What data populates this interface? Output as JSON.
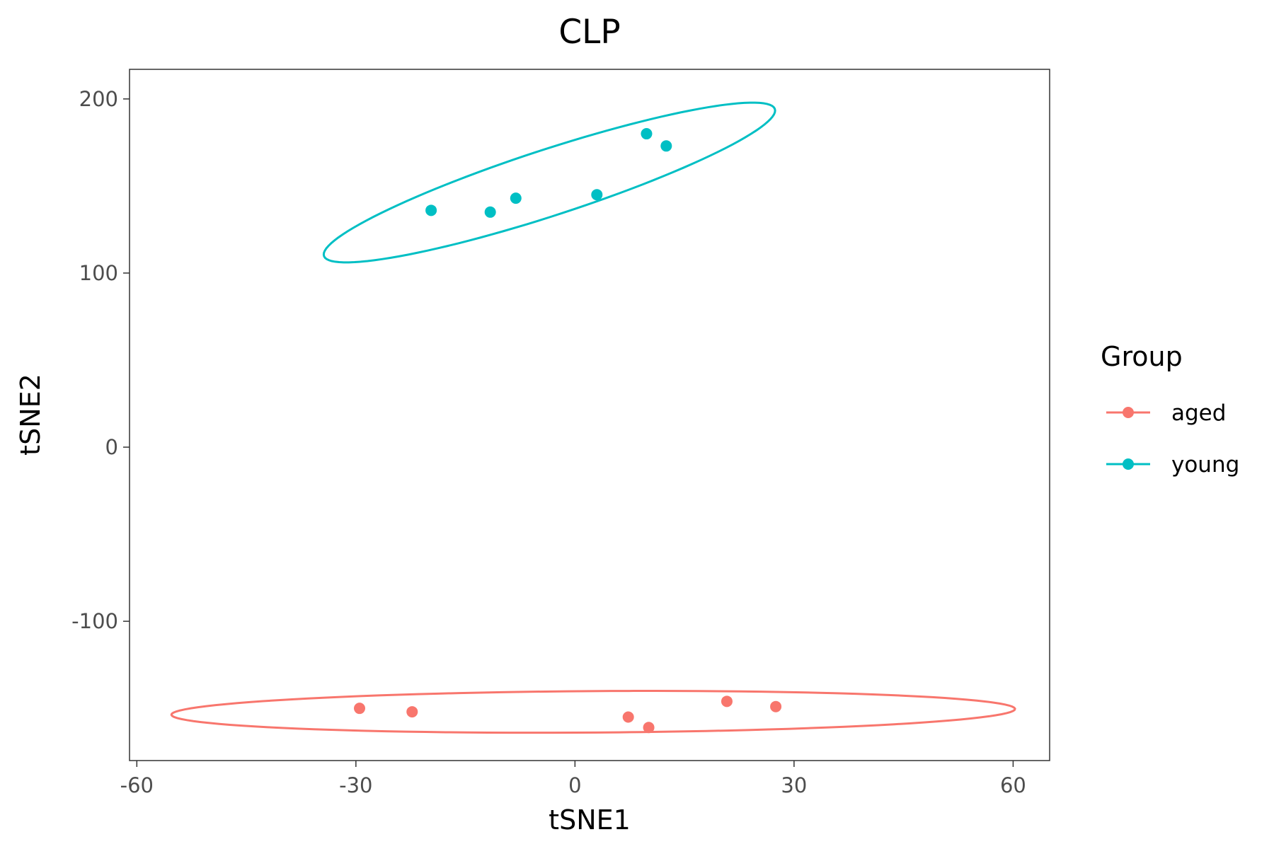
{
  "chart_data": {
    "type": "scatter",
    "title": "CLP",
    "xlabel": "tSNE1",
    "ylabel": "tSNE2",
    "xlim": [
      -61,
      65
    ],
    "ylim": [
      -180,
      217
    ],
    "x_ticks": [
      -60,
      -30,
      0,
      30,
      60
    ],
    "x_tick_labels": [
      "-60",
      "-30",
      "0",
      "30",
      "60"
    ],
    "y_ticks": [
      -100,
      0,
      100,
      200
    ],
    "y_tick_labels": [
      "-100",
      "0",
      "100",
      "200"
    ],
    "grid": false,
    "legend": {
      "title": "Group",
      "placement": "right"
    },
    "series": [
      {
        "name": "aged",
        "color": "#F8766D",
        "points": [
          {
            "x": -29.5,
            "y": -150
          },
          {
            "x": -22.3,
            "y": -152
          },
          {
            "x": 7.3,
            "y": -155
          },
          {
            "x": 10.1,
            "y": -161
          },
          {
            "x": 20.8,
            "y": -146
          },
          {
            "x": 27.5,
            "y": -149
          }
        ],
        "ellipse": {
          "center": [
            2.5,
            -152
          ],
          "points": [
            {
              "x": -55,
              "y": -152
            },
            {
              "x": 60,
              "y": -151
            },
            {
              "x": 8,
              "y": -140
            },
            {
              "x": -3,
              "y": -164
            }
          ]
        }
      },
      {
        "name": "young",
        "color": "#00BFC4",
        "points": [
          {
            "x": -19.7,
            "y": 136
          },
          {
            "x": -11.6,
            "y": 135
          },
          {
            "x": -8.1,
            "y": 143
          },
          {
            "x": 3.0,
            "y": 145
          },
          {
            "x": 9.8,
            "y": 180
          },
          {
            "x": 12.5,
            "y": 173
          }
        ],
        "ellipse": {
          "center": [
            -3.5,
            152
          ],
          "points": [
            {
              "x": -34,
              "y": 107
            },
            {
              "x": 27,
              "y": 195
            },
            {
              "x": -8,
              "y": 165
            },
            {
              "x": 2,
              "y": 139
            }
          ]
        }
      }
    ]
  }
}
